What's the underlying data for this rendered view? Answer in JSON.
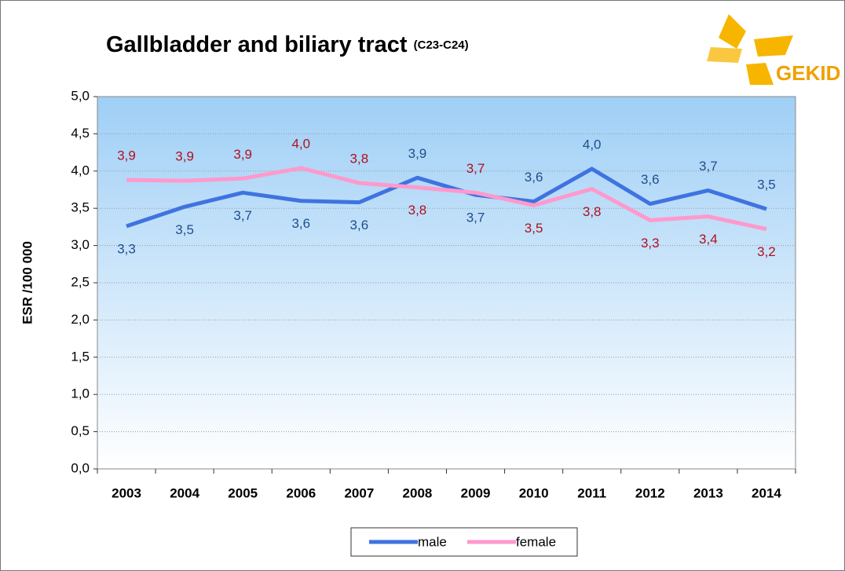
{
  "logo_text": "GEKID",
  "chart_data": {
    "type": "line",
    "title": "Gallbladder and biliary tract",
    "subtitle": "(C23-C24)",
    "y_label": "ESR /100 000",
    "categories": [
      "2003",
      "2004",
      "2005",
      "2006",
      "2007",
      "2008",
      "2009",
      "2010",
      "2011",
      "2012",
      "2013",
      "2014"
    ],
    "series": [
      {
        "name": "male",
        "color": "#3f73e0",
        "values": [
          3.26,
          3.52,
          3.71,
          3.6,
          3.58,
          3.91,
          3.68,
          3.59,
          4.03,
          3.56,
          3.74,
          3.49
        ],
        "value_labels": [
          "3,3",
          "3,5",
          "3,7",
          "3,6",
          "3,6",
          "3,9",
          "3,7",
          "3,6",
          "4,0",
          "3,6",
          "3,7",
          "3,5"
        ],
        "label_color": "#1f4e8c"
      },
      {
        "name": "female",
        "color": "#ff99cc",
        "values": [
          3.88,
          3.87,
          3.9,
          4.04,
          3.84,
          3.78,
          3.71,
          3.54,
          3.76,
          3.34,
          3.39,
          3.22
        ],
        "value_labels": [
          "3,9",
          "3,9",
          "3,9",
          "4,0",
          "3,8",
          "3,8",
          "3,7",
          "3,5",
          "3,8",
          "3,3",
          "3,4",
          "3,2"
        ],
        "label_color": "#b01020"
      }
    ],
    "ylim": [
      0,
      5
    ],
    "yticks": [
      {
        "value": 0,
        "label": "0,0"
      },
      {
        "value": 0.5,
        "label": "0,5"
      },
      {
        "value": 1,
        "label": "1,0"
      },
      {
        "value": 1.5,
        "label": "1,5"
      },
      {
        "value": 2,
        "label": "2,0"
      },
      {
        "value": 2.5,
        "label": "2,5"
      },
      {
        "value": 3,
        "label": "3,0"
      },
      {
        "value": 3.5,
        "label": "3,5"
      },
      {
        "value": 4,
        "label": "4,0"
      },
      {
        "value": 4.5,
        "label": "4,5"
      },
      {
        "value": 5,
        "label": "5,0"
      }
    ],
    "grid": true,
    "legend": "bottom"
  }
}
